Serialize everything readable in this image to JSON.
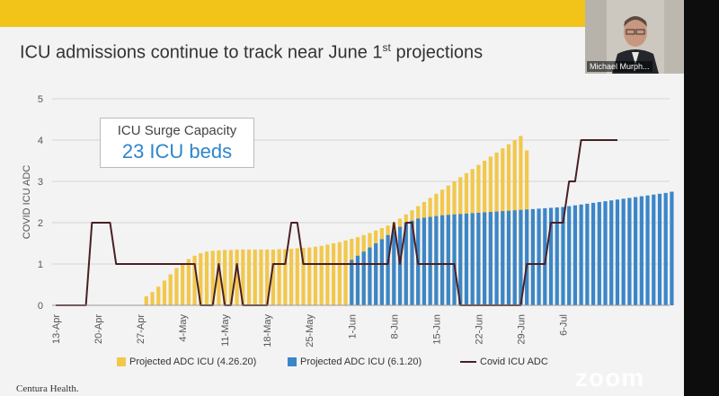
{
  "slide": {
    "title": "ICU admissions continue to track near June 1",
    "title_sup": "st",
    "title_end": " projections",
    "footer_logo": "Centura Health."
  },
  "callout": {
    "line1": "ICU Surge Capacity",
    "line2": "23 ICU beds"
  },
  "chart_data": {
    "type": "bar",
    "ylabel": "COVID ICU ADC",
    "ylim": [
      0,
      5
    ],
    "yticks": [
      "0",
      "1",
      "2",
      "3",
      "4",
      "5"
    ],
    "x_tick_labels": [
      "13-Apr",
      "20-Apr",
      "27-Apr",
      "4-May",
      "11-May",
      "18-May",
      "25-May",
      "1-Jun",
      "8-Jun",
      "15-Jun",
      "22-Jun",
      "29-Jun",
      "6-Jul"
    ],
    "x_tick_day_index": [
      0,
      7,
      14,
      21,
      28,
      35,
      42,
      49,
      56,
      63,
      70,
      77,
      84
    ],
    "series": [
      {
        "name": "Projected ADC ICU (4.26.20)",
        "color": "#f2c84b",
        "type": "bar",
        "start_day": 15,
        "values": [
          0.22,
          0.32,
          0.45,
          0.6,
          0.75,
          0.9,
          1.02,
          1.12,
          1.2,
          1.26,
          1.3,
          1.32,
          1.33,
          1.34,
          1.34,
          1.35,
          1.35,
          1.35,
          1.35,
          1.35,
          1.35,
          1.35,
          1.36,
          1.36,
          1.37,
          1.38,
          1.39,
          1.4,
          1.42,
          1.44,
          1.47,
          1.5,
          1.53,
          1.57,
          1.61,
          1.65,
          1.7,
          1.75,
          1.81,
          1.87,
          1.93,
          2.0,
          2.1,
          2.2,
          2.3,
          2.4,
          2.5,
          2.6,
          2.7,
          2.8,
          2.9,
          3.0,
          3.1,
          3.2,
          3.3,
          3.4,
          3.5,
          3.6,
          3.7,
          3.8,
          3.9,
          4.0,
          4.1,
          3.75
        ]
      },
      {
        "name": "Projected ADC ICU (6.1.20)",
        "color": "#3b86c8",
        "type": "bar",
        "start_day": 49,
        "values": [
          1.1,
          1.2,
          1.3,
          1.4,
          1.5,
          1.6,
          1.7,
          1.8,
          1.9,
          2.0,
          2.05,
          2.1,
          2.12,
          2.14,
          2.16,
          2.18,
          2.19,
          2.2,
          2.21,
          2.22,
          2.23,
          2.24,
          2.25,
          2.26,
          2.27,
          2.28,
          2.29,
          2.3,
          2.31,
          2.32,
          2.33,
          2.34,
          2.35,
          2.36,
          2.37,
          2.38,
          2.4,
          2.42,
          2.44,
          2.46,
          2.48,
          2.5,
          2.52,
          2.54,
          2.56,
          2.58,
          2.6,
          2.62,
          2.64,
          2.66,
          2.68,
          2.7,
          2.72,
          2.75
        ]
      },
      {
        "name": "Covid ICU ADC",
        "color": "#4a1f24",
        "type": "line",
        "start_day": 0,
        "values": [
          0,
          0,
          0,
          0,
          0,
          0,
          2,
          2,
          2,
          2,
          1,
          1,
          1,
          1,
          1,
          1,
          1,
          1,
          1,
          1,
          1,
          1,
          1,
          1,
          0,
          0,
          0,
          1,
          0,
          0,
          1,
          0,
          0,
          0,
          0,
          0,
          1,
          1,
          1,
          2,
          2,
          1,
          1,
          1,
          1,
          1,
          1,
          1,
          1,
          1,
          1,
          1,
          1,
          1,
          1,
          1,
          2,
          1,
          2,
          2,
          1,
          1,
          1,
          1,
          1,
          1,
          1,
          0,
          0,
          0,
          0,
          0,
          0,
          0,
          0,
          0,
          0,
          0,
          1,
          1,
          1,
          1,
          2,
          2,
          2,
          3,
          3,
          4,
          4,
          4,
          4,
          4,
          4,
          4
        ]
      }
    ]
  },
  "video_tile": {
    "name": "Michael Murph..."
  },
  "watermark": "zoom"
}
